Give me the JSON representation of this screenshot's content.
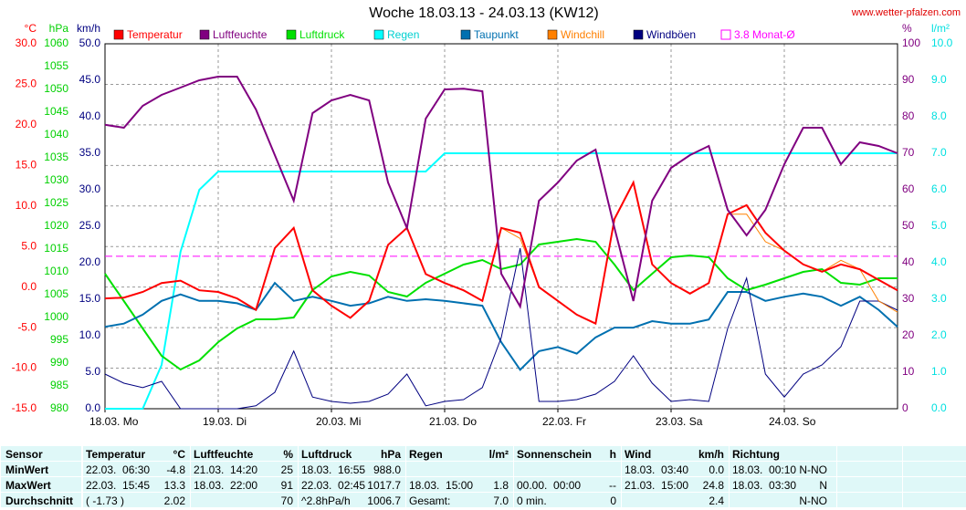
{
  "chart_data": {
    "type": "line",
    "title": "Woche 18.03.13 - 24.03.13 (KW12)",
    "source": "www.wetter-pfalzen.com",
    "grid": true,
    "x": [
      0,
      4,
      8,
      12,
      16,
      20,
      24,
      28,
      32,
      36,
      40,
      44,
      48,
      52,
      56,
      60,
      64,
      68,
      72,
      76,
      80,
      84,
      88,
      92,
      96,
      100,
      104,
      108,
      112,
      116,
      120,
      124,
      128,
      132,
      136,
      140,
      144,
      148,
      152,
      156,
      160,
      164,
      168
    ],
    "xlim": [
      0,
      168
    ],
    "xticks": [
      {
        "value": 0,
        "label": "18.03. Mo"
      },
      {
        "value": 24,
        "label": "19.03. Di"
      },
      {
        "value": 48,
        "label": "20.03. Mi"
      },
      {
        "value": 72,
        "label": "21.03. Do"
      },
      {
        "value": 96,
        "label": "22.03. Fr"
      },
      {
        "value": 120,
        "label": "23.03. Sa"
      },
      {
        "value": 144,
        "label": "24.03. So"
      }
    ],
    "axes": {
      "c": {
        "unit": "°C",
        "color": "#ff0000",
        "lim": [
          -15,
          30
        ],
        "ticks": [
          {
            "value": 30,
            "label": "30.0"
          },
          {
            "value": 25,
            "label": "25.0"
          },
          {
            "value": 20,
            "label": "20.0"
          },
          {
            "value": 15,
            "label": "15.0"
          },
          {
            "value": 10,
            "label": "10.0"
          },
          {
            "value": 5,
            "label": "5.0"
          },
          {
            "value": 0,
            "label": "0.0"
          },
          {
            "value": -5,
            "label": "-5.0"
          },
          {
            "value": -10,
            "label": "-10.0"
          },
          {
            "value": -15,
            "label": "-15.0"
          }
        ]
      },
      "hpa": {
        "unit": "hPa",
        "color": "#00d000",
        "lim": [
          980,
          1060
        ],
        "ticks": [
          1060,
          1055,
          1050,
          1045,
          1040,
          1035,
          1030,
          1025,
          1020,
          1015,
          1010,
          1005,
          1000,
          995,
          990,
          985,
          980
        ]
      },
      "kmh": {
        "unit": "km/h",
        "color": "#000080",
        "lim": [
          0,
          50
        ],
        "ticks": [
          {
            "value": 50,
            "label": "50.0"
          },
          {
            "value": 45,
            "label": "45.0"
          },
          {
            "value": 40,
            "label": "40.0"
          },
          {
            "value": 35,
            "label": "35.0"
          },
          {
            "value": 30,
            "label": "30.0"
          },
          {
            "value": 25,
            "label": "25.0"
          },
          {
            "value": 20,
            "label": "20.0"
          },
          {
            "value": 15,
            "label": "15.0"
          },
          {
            "value": 10,
            "label": "10.0"
          },
          {
            "value": 5,
            "label": "5.0"
          },
          {
            "value": 0,
            "label": "0.0"
          }
        ]
      },
      "pct": {
        "unit": "%",
        "color": "#800080",
        "lim": [
          0,
          100
        ],
        "ticks": [
          100,
          90,
          80,
          70,
          60,
          50,
          40,
          30,
          20,
          10,
          0
        ]
      },
      "lm2": {
        "unit": "l/m²",
        "color": "#00e0e0",
        "lim": [
          0,
          10
        ],
        "ticks": [
          {
            "value": 10,
            "label": "10.0"
          },
          {
            "value": 9,
            "label": "9.0"
          },
          {
            "value": 8,
            "label": "8.0"
          },
          {
            "value": 7,
            "label": "7.0"
          },
          {
            "value": 6,
            "label": "6.0"
          },
          {
            "value": 5,
            "label": "5.0"
          },
          {
            "value": 4,
            "label": "4.0"
          },
          {
            "value": 3,
            "label": "3.0"
          },
          {
            "value": 2,
            "label": "2.0"
          },
          {
            "value": 1,
            "label": "1.0"
          },
          {
            "value": 0,
            "label": "0.0"
          }
        ]
      }
    },
    "series": [
      {
        "name": "Temperatur",
        "color": "#ff0000",
        "axis": "c",
        "values": [
          -1.4,
          -1.3,
          -0.6,
          0.5,
          0.8,
          -0.4,
          -0.6,
          -1.4,
          -2.8,
          4.8,
          7.3,
          -0.4,
          -2.3,
          -3.8,
          -1.7,
          5.2,
          7.3,
          1.6,
          0.5,
          -0.4,
          -1.7,
          7.3,
          6.7,
          0,
          -1.7,
          -3.4,
          -4.5,
          8.4,
          12.9,
          2.8,
          0.5,
          -0.8,
          0.5,
          9,
          10.1,
          6.7,
          4.5,
          2.8,
          1.9,
          2.8,
          2.2,
          0.9,
          -0.4
        ]
      },
      {
        "name": "Luftfeuchte",
        "color": "#800080",
        "axis": "pct",
        "values": [
          77.8,
          77,
          83,
          86,
          88,
          90,
          91,
          91,
          82,
          69.5,
          57,
          81,
          84.5,
          86,
          84.5,
          62,
          49.5,
          79.5,
          87.5,
          87.7,
          87,
          37,
          28,
          57,
          62,
          68,
          71,
          49.5,
          29.5,
          57,
          66,
          69.5,
          72,
          54.5,
          47.5,
          54.5,
          67,
          77,
          77,
          67,
          73,
          72,
          70
        ]
      },
      {
        "name": "Luftdruck",
        "color": "#00e000",
        "axis": "hpa",
        "values": [
          1009.6,
          1003.6,
          997.6,
          991.6,
          988.6,
          990.6,
          994.6,
          997.6,
          999.6,
          999.6,
          1000,
          1006,
          1009,
          1010,
          1009.2,
          1005.6,
          1004.6,
          1007.6,
          1009.6,
          1011.6,
          1012.6,
          1010.6,
          1011.6,
          1016,
          1016.6,
          1017.2,
          1016.6,
          1011.6,
          1006,
          1009.6,
          1013.2,
          1013.6,
          1013.2,
          1008.6,
          1006,
          1007.2,
          1008.6,
          1010,
          1010.6,
          1007.6,
          1007.2,
          1008.6,
          1008.6
        ]
      },
      {
        "name": "Regen",
        "color": "#00ffff",
        "axis": "lm2",
        "values": [
          0,
          0,
          0,
          1.2,
          4.3,
          6.0,
          6.5,
          6.5,
          6.5,
          6.5,
          6.5,
          6.5,
          6.5,
          6.5,
          6.5,
          6.5,
          6.5,
          6.5,
          7.0,
          7.0,
          7.0,
          7.0,
          7.0,
          7.0,
          7.0,
          7.0,
          7.0,
          7.0,
          7.0,
          7.0,
          7.0,
          7.0,
          7.0,
          7.0,
          7.0,
          7.0,
          7.0,
          7.0,
          7.0,
          7.0,
          7.0,
          7.0,
          7.0
        ]
      },
      {
        "name": "Taupunkt",
        "color": "#0070b0",
        "axis": "c",
        "values": [
          -4.9,
          -4.5,
          -3.4,
          -1.7,
          -0.9,
          -1.7,
          -1.7,
          -2,
          -2.8,
          0.5,
          -1.7,
          -1.2,
          -1.7,
          -2.3,
          -2,
          -1.2,
          -1.7,
          -1.5,
          -1.7,
          -2,
          -2.3,
          -6.8,
          -10.2,
          -7.9,
          -7.4,
          -8.2,
          -6.2,
          -5,
          -5,
          -4.2,
          -4.5,
          -4.5,
          -4,
          -0.6,
          -0.6,
          -1.7,
          -1.2,
          -0.8,
          -1.2,
          -2.3,
          -1.2,
          -2.8,
          -4.9
        ]
      },
      {
        "name": "Windchill",
        "color": "#ff8000",
        "axis": "c",
        "values": [
          -1.4,
          -1.3,
          -0.6,
          0.5,
          0.8,
          -0.4,
          -0.6,
          -1.4,
          -2.8,
          4.8,
          7.3,
          -0.4,
          -2.3,
          -3.8,
          -1.7,
          5.2,
          7.3,
          1.6,
          0.5,
          -0.4,
          -1.7,
          7.3,
          6.0,
          0,
          -1.7,
          -3.4,
          -4.5,
          8.4,
          12.9,
          2.8,
          0.5,
          -0.8,
          0.5,
          9,
          9.0,
          5.6,
          4.5,
          2.8,
          1.9,
          3.3,
          2.2,
          -1.7,
          -3.1
        ]
      },
      {
        "name": "Windböen",
        "color": "#000080",
        "axis": "kmh",
        "values": [
          4.75,
          3.5,
          2.9,
          3.75,
          0,
          0,
          0,
          0,
          0.4,
          2.25,
          7.9,
          1.6,
          1,
          0.75,
          1,
          2,
          4.75,
          0.4,
          1,
          1.25,
          2.9,
          9.75,
          22,
          1,
          1,
          1.25,
          2,
          3.75,
          7.25,
          3.5,
          1,
          1.25,
          1,
          11,
          17.9,
          4.75,
          1.6,
          4.75,
          6,
          8.5,
          14.75,
          14.75,
          13.5
        ]
      }
    ],
    "reference": {
      "name": "3.8 Monat-Ø",
      "color": "#ff00ff",
      "axis": "c",
      "value": 3.8
    }
  },
  "table": {
    "header": {
      "label": "Sensor",
      "cells": [
        {
          "l": "Temperatur",
          "r": "°C"
        },
        {
          "l": "Luftfeuchte",
          "r": "%"
        },
        {
          "l": "Luftdruck",
          "r": "hPa"
        },
        {
          "l": "Regen",
          "r": "l/m²"
        },
        {
          "l": "Sonnenschein",
          "r": "h"
        },
        {
          "l": "Wind",
          "r": "km/h"
        },
        {
          "l": "Richtung"
        }
      ]
    },
    "rows": [
      {
        "label": "MinWert",
        "cells": [
          {
            "l": "22.03.  06:30",
            "r": "-4.8"
          },
          {
            "l": "21.03.  14:20",
            "r": "25"
          },
          {
            "l": "18.03.  16:55",
            "r": "988.0"
          },
          {},
          {},
          {
            "l": "18.03.  03:40",
            "r": "0.0"
          },
          {
            "l": "18.03.  00:10",
            "r": "N-NO"
          }
        ]
      },
      {
        "label": "MaxWert",
        "cells": [
          {
            "l": "22.03.  15:45",
            "r": "13.3"
          },
          {
            "l": "18.03.  22:00",
            "r": "91"
          },
          {
            "l": "22.03.  02:45",
            "r": "1017.7"
          },
          {
            "l": "18.03.  15:00",
            "r": "1.8"
          },
          {
            "l": "00.00.  00:00",
            "r": "--"
          },
          {
            "l": "21.03.  15:00",
            "r": "24.8"
          },
          {
            "l": "18.03.  03:30",
            "r": "N"
          }
        ]
      },
      {
        "label": "Durchschnitt",
        "cells": [
          {
            "l": "( -1.73 )",
            "r": "2.02"
          },
          {
            "r": "70"
          },
          {
            "l": "^2.8hPa/h",
            "r": "1006.7"
          },
          {
            "l": "Gesamt:",
            "r": "7.0"
          },
          {
            "l": "0 min.",
            "r": "0"
          },
          {
            "r": "2.4"
          },
          {
            "r": "N-NO"
          }
        ]
      }
    ]
  }
}
